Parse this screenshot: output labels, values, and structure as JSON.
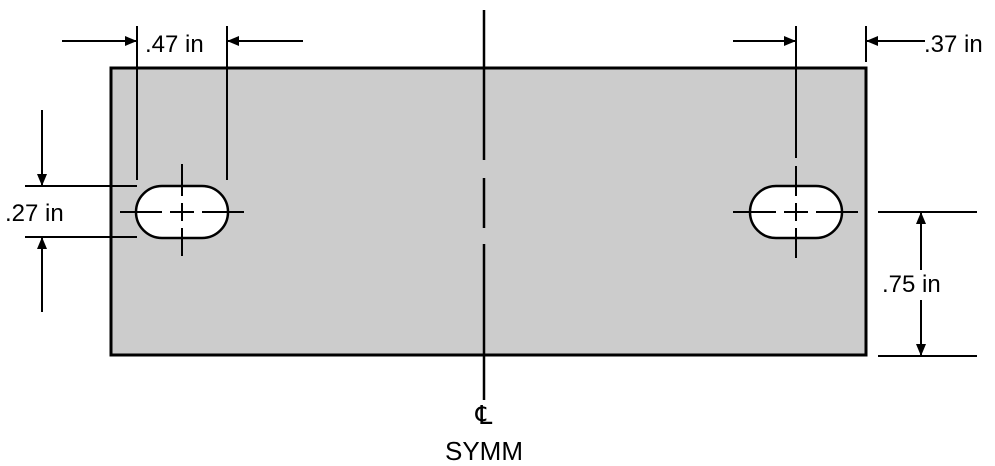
{
  "colors": {
    "plate_fill": "#cccccc",
    "line": "#000000",
    "slot_fill": "#ffffff",
    "background": "#ffffff"
  },
  "dimensions": {
    "slot_width": ".47 in",
    "edge_to_slot_center": ".37 in",
    "slot_height": ".27 in",
    "slot_center_to_bottom": ".75 in"
  },
  "centerline": {
    "symbol": "℄",
    "label": "SYMM"
  }
}
